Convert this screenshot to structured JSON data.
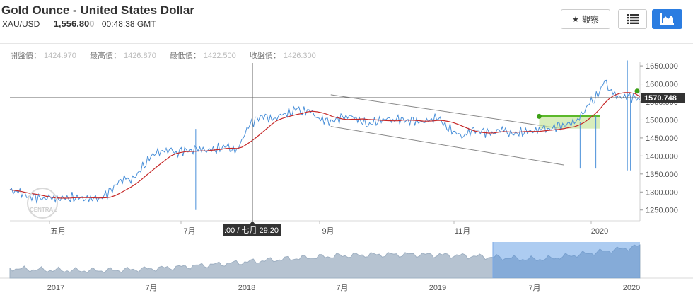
{
  "header": {
    "title": "Gold Ounce - United States Dollar",
    "symbol": "XAU/USD",
    "price_main": "1,556.80",
    "price_dim": "0",
    "time": "00:48:38 GMT",
    "watch_label": "觀察",
    "watch_icon": "star-icon",
    "list_icon": "list-icon",
    "chart_icon": "area-chart-icon"
  },
  "ohlc": {
    "open_label": "開盤價：",
    "open": "1424.970",
    "high_label": "最高價：",
    "high": "1426.870",
    "low_label": "最低價：",
    "low": "1422.500",
    "close_label": "收盤價：",
    "close": "1426.300"
  },
  "chart_data": {
    "type": "line",
    "title": "",
    "xlabel": "",
    "ylabel": "",
    "ylim": [
      1220,
      1660
    ],
    "yticks": [
      "1650.000",
      "1600.000",
      "1550.000",
      "1500.000",
      "1450.000",
      "1400.000",
      "1350.000",
      "1300.000",
      "1250.000"
    ],
    "xticks": [
      "五月",
      "7月",
      "9月",
      "11月",
      "2020"
    ],
    "current_value_label": "1570.748",
    "crosshair_label": ":00 / 七月 29,20",
    "watermark": "CENTRAL",
    "series": [
      {
        "values": [
          1306,
          1303,
          1298,
          1290,
          1285,
          1283,
          1280,
          1282,
          1284,
          1282,
          1285,
          1284,
          1286,
          1287,
          1284,
          1283,
          1282,
          1280,
          1282,
          1290,
          1300,
          1320,
          1330,
          1338,
          1335,
          1345,
          1365,
          1385,
          1400,
          1410,
          1415,
          1412,
          1418,
          1405,
          1410,
          1415,
          1413,
          1418,
          1420,
          1415,
          1418,
          1422,
          1424,
          1430,
          1420,
          1415,
          1440,
          1475,
          1490,
          1500,
          1510,
          1505,
          1500,
          1508,
          1515,
          1520,
          1525,
          1535,
          1523,
          1530,
          1520,
          1505,
          1500,
          1493,
          1495,
          1500,
          1505,
          1510,
          1510,
          1500,
          1500,
          1485,
          1495,
          1500,
          1500,
          1505,
          1498,
          1500,
          1499,
          1495,
          1497,
          1493,
          1495,
          1497,
          1505,
          1510,
          1490,
          1480,
          1470,
          1460,
          1455,
          1465,
          1470,
          1468,
          1465,
          1462,
          1463,
          1470,
          1475,
          1465,
          1462,
          1467,
          1470,
          1468,
          1470,
          1475,
          1475,
          1472,
          1478,
          1480,
          1483,
          1490,
          1490,
          1510,
          1525,
          1550,
          1560,
          1580,
          1612,
          1585,
          1570,
          1560,
          1565,
          1560,
          1560,
          1555
        ]
      }
    ],
    "channel_upper": [
      [
        1535,
        1570
      ],
      [
        1735,
        1475
      ]
    ],
    "channel_lower": [
      [
        1535,
        1482
      ],
      [
        1735,
        1375
      ]
    ],
    "navigator": {
      "xticks": [
        "2017",
        "7月",
        "2018",
        "7月",
        "2019",
        "7月",
        "2020"
      ]
    }
  }
}
